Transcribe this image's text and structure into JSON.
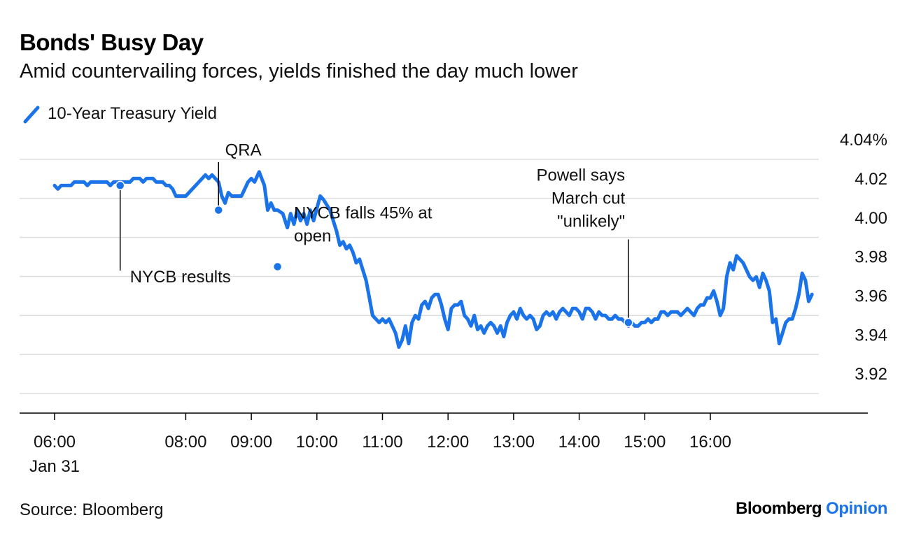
{
  "header": {
    "title": "Bonds' Busy Day",
    "subtitle": "Amid countervailing forces, yields finished the day much lower"
  },
  "footer": {
    "source": "Source: Bloomberg",
    "logo_brand": "Bloomberg",
    "logo_suffix": "Opinion"
  },
  "colors": {
    "line": "#1a73e8",
    "grid": "#dddddd",
    "axis": "#000000"
  },
  "chart_data": {
    "type": "line",
    "title": "Bonds' Busy Day",
    "subtitle": "Amid countervailing forces, yields finished the day much lower",
    "xlabel": "",
    "ylabel": "",
    "x_unit": "hours (time of day, Jan 31)",
    "xlim": [
      5.5,
      17.65
    ],
    "ylim": [
      3.9,
      4.04
    ],
    "y_ticks": [
      {
        "value": 4.04,
        "label": "4.04%"
      },
      {
        "value": 4.02,
        "label": "4.02"
      },
      {
        "value": 4.0,
        "label": "4.00"
      },
      {
        "value": 3.98,
        "label": "3.98"
      },
      {
        "value": 3.96,
        "label": "3.96"
      },
      {
        "value": 3.94,
        "label": "3.94"
      },
      {
        "value": 3.92,
        "label": "3.92"
      }
    ],
    "x_ticks": [
      {
        "value": 6,
        "label": "06:00",
        "sublabel": "Jan 31"
      },
      {
        "value": 8,
        "label": "08:00"
      },
      {
        "value": 9,
        "label": "09:00"
      },
      {
        "value": 10,
        "label": "10:00"
      },
      {
        "value": 11,
        "label": "11:00"
      },
      {
        "value": 12,
        "label": "12:00"
      },
      {
        "value": 13,
        "label": "13:00"
      },
      {
        "value": 14,
        "label": "14:00"
      },
      {
        "value": 15,
        "label": "15:00"
      },
      {
        "value": 16,
        "label": "16:00"
      }
    ],
    "grid": true,
    "legend": "top-left",
    "series": [
      {
        "name": "10-Year Treasury Yield",
        "points": [
          [
            6.0,
            4.0166
          ],
          [
            6.05,
            4.0148
          ],
          [
            6.1,
            4.0166
          ],
          [
            6.25,
            4.0166
          ],
          [
            6.3,
            4.0184
          ],
          [
            6.45,
            4.0184
          ],
          [
            6.5,
            4.0166
          ],
          [
            6.55,
            4.0184
          ],
          [
            6.8,
            4.0184
          ],
          [
            6.85,
            4.0166
          ],
          [
            6.9,
            4.0184
          ],
          [
            7.15,
            4.0184
          ],
          [
            7.2,
            4.0202
          ],
          [
            7.3,
            4.0202
          ],
          [
            7.35,
            4.0184
          ],
          [
            7.4,
            4.0202
          ],
          [
            7.5,
            4.0202
          ],
          [
            7.55,
            4.0184
          ],
          [
            7.65,
            4.0184
          ],
          [
            7.7,
            4.0166
          ],
          [
            7.75,
            4.0166
          ],
          [
            7.8,
            4.0148
          ],
          [
            7.85,
            4.0112
          ],
          [
            8.0,
            4.0112
          ],
          [
            8.05,
            4.013
          ],
          [
            8.1,
            4.0148
          ],
          [
            8.15,
            4.0166
          ],
          [
            8.2,
            4.0184
          ],
          [
            8.25,
            4.0202
          ],
          [
            8.3,
            4.022
          ],
          [
            8.35,
            4.0202
          ],
          [
            8.4,
            4.022
          ],
          [
            8.5,
            4.0184
          ],
          [
            8.55,
            4.0112
          ],
          [
            8.6,
            4.0076
          ],
          [
            8.65,
            4.013
          ],
          [
            8.7,
            4.0112
          ],
          [
            8.85,
            4.0112
          ],
          [
            8.9,
            4.0148
          ],
          [
            8.95,
            4.0184
          ],
          [
            9.0,
            4.0202
          ],
          [
            9.05,
            4.0184
          ],
          [
            9.12,
            4.0236
          ],
          [
            9.2,
            4.0166
          ],
          [
            9.25,
            4.004
          ],
          [
            9.3,
            4.0076
          ],
          [
            9.35,
            4.004
          ],
          [
            9.4,
            4.004
          ],
          [
            9.48,
            4.0022
          ],
          [
            9.55,
            3.995
          ],
          [
            9.6,
            4.0022
          ],
          [
            9.65,
            3.9968
          ],
          [
            9.7,
            4.004
          ],
          [
            9.75,
            3.9986
          ],
          [
            9.8,
            4.0022
          ],
          [
            9.85,
            3.9968
          ],
          [
            9.9,
            4.004
          ],
          [
            9.95,
            3.9986
          ],
          [
            10.05,
            4.0112
          ],
          [
            10.1,
            4.0094
          ],
          [
            10.2,
            4.004
          ],
          [
            10.25,
            3.9986
          ],
          [
            10.3,
            3.9932
          ],
          [
            10.35,
            3.986
          ],
          [
            10.4,
            3.9878
          ],
          [
            10.45,
            3.9842
          ],
          [
            10.5,
            3.986
          ],
          [
            10.55,
            3.9824
          ],
          [
            10.6,
            3.977
          ],
          [
            10.65,
            3.9788
          ],
          [
            10.7,
            3.9734
          ],
          [
            10.75,
            3.968
          ],
          [
            10.8,
            3.959
          ],
          [
            10.85,
            3.95
          ],
          [
            10.9,
            3.9482
          ],
          [
            10.95,
            3.9464
          ],
          [
            11.0,
            3.9482
          ],
          [
            11.05,
            3.9464
          ],
          [
            11.1,
            3.9482
          ],
          [
            11.2,
            3.941
          ],
          [
            11.25,
            3.9338
          ],
          [
            11.3,
            3.9374
          ],
          [
            11.35,
            3.9446
          ],
          [
            11.4,
            3.9356
          ],
          [
            11.45,
            3.9464
          ],
          [
            11.5,
            3.95
          ],
          [
            11.55,
            3.9482
          ],
          [
            11.6,
            3.9554
          ],
          [
            11.65,
            3.9572
          ],
          [
            11.7,
            3.9536
          ],
          [
            11.75,
            3.959
          ],
          [
            11.8,
            3.9608
          ],
          [
            11.85,
            3.9608
          ],
          [
            11.9,
            3.9554
          ],
          [
            11.95,
            3.9482
          ],
          [
            12.0,
            3.9428
          ],
          [
            12.05,
            3.9536
          ],
          [
            12.1,
            3.9554
          ],
          [
            12.15,
            3.9554
          ],
          [
            12.2,
            3.9572
          ],
          [
            12.25,
            3.95
          ],
          [
            12.3,
            3.9482
          ],
          [
            12.35,
            3.9446
          ],
          [
            12.4,
            3.95
          ],
          [
            12.45,
            3.9428
          ],
          [
            12.5,
            3.9446
          ],
          [
            12.55,
            3.941
          ],
          [
            12.6,
            3.9446
          ],
          [
            12.65,
            3.9464
          ],
          [
            12.7,
            3.9446
          ],
          [
            12.75,
            3.941
          ],
          [
            12.8,
            3.9446
          ],
          [
            12.85,
            3.9392
          ],
          [
            12.9,
            3.9464
          ],
          [
            12.95,
            3.95
          ],
          [
            13.0,
            3.9518
          ],
          [
            13.05,
            3.9482
          ],
          [
            13.1,
            3.9536
          ],
          [
            13.15,
            3.95
          ],
          [
            13.2,
            3.9482
          ],
          [
            13.25,
            3.95
          ],
          [
            13.3,
            3.9482
          ],
          [
            13.35,
            3.9428
          ],
          [
            13.4,
            3.9446
          ],
          [
            13.45,
            3.95
          ],
          [
            13.5,
            3.9518
          ],
          [
            13.55,
            3.95
          ],
          [
            13.6,
            3.9518
          ],
          [
            13.65,
            3.9482
          ],
          [
            13.7,
            3.9518
          ],
          [
            13.75,
            3.9536
          ],
          [
            13.8,
            3.9518
          ],
          [
            13.85,
            3.95
          ],
          [
            13.9,
            3.9536
          ],
          [
            13.95,
            3.9536
          ],
          [
            14.0,
            3.9518
          ],
          [
            14.05,
            3.9482
          ],
          [
            14.1,
            3.9536
          ],
          [
            14.15,
            3.9536
          ],
          [
            14.2,
            3.9518
          ],
          [
            14.25,
            3.9482
          ],
          [
            14.3,
            3.9518
          ],
          [
            14.35,
            3.95
          ],
          [
            14.4,
            3.95
          ],
          [
            14.45,
            3.9482
          ],
          [
            14.5,
            3.9482
          ],
          [
            14.55,
            3.95
          ],
          [
            14.6,
            3.9482
          ],
          [
            14.65,
            3.9482
          ],
          [
            14.7,
            3.9464
          ],
          [
            14.75,
            3.9446
          ],
          [
            14.8,
            3.9464
          ],
          [
            14.85,
            3.9446
          ],
          [
            14.9,
            3.9446
          ],
          [
            14.95,
            3.9464
          ],
          [
            15.0,
            3.9464
          ],
          [
            15.05,
            3.9482
          ],
          [
            15.1,
            3.9464
          ],
          [
            15.15,
            3.9482
          ],
          [
            15.2,
            3.9482
          ],
          [
            15.25,
            3.9518
          ],
          [
            15.3,
            3.9518
          ],
          [
            15.35,
            3.95
          ],
          [
            15.4,
            3.9518
          ],
          [
            15.5,
            3.9518
          ],
          [
            15.55,
            3.95
          ],
          [
            15.6,
            3.9518
          ],
          [
            15.65,
            3.9536
          ],
          [
            15.7,
            3.9518
          ],
          [
            15.75,
            3.95
          ],
          [
            15.8,
            3.9536
          ],
          [
            15.85,
            3.9554
          ],
          [
            15.9,
            3.9554
          ],
          [
            15.95,
            3.959
          ],
          [
            16.0,
            3.959
          ],
          [
            16.05,
            3.9626
          ],
          [
            16.1,
            3.9572
          ],
          [
            16.15,
            3.95
          ],
          [
            16.2,
            3.9536
          ],
          [
            16.25,
            3.97
          ],
          [
            16.3,
            3.977
          ],
          [
            16.35,
            3.9734
          ],
          [
            16.4,
            3.9806
          ],
          [
            16.45,
            3.9788
          ],
          [
            16.5,
            3.977
          ],
          [
            16.55,
            3.9734
          ],
          [
            16.6,
            3.9698
          ],
          [
            16.65,
            3.968
          ],
          [
            16.7,
            3.9698
          ],
          [
            16.75,
            3.9644
          ],
          [
            16.8,
            3.9716
          ],
          [
            16.85,
            3.968
          ],
          [
            16.9,
            3.9626
          ],
          [
            16.95,
            3.9464
          ],
          [
            17.0,
            3.9482
          ],
          [
            17.05,
            3.9356
          ],
          [
            17.1,
            3.941
          ],
          [
            17.15,
            3.9464
          ],
          [
            17.2,
            3.9482
          ],
          [
            17.25,
            3.9482
          ],
          [
            17.3,
            3.9536
          ],
          [
            17.35,
            3.9608
          ],
          [
            17.4,
            3.9716
          ],
          [
            17.45,
            3.968
          ],
          [
            17.5,
            3.9572
          ],
          [
            17.55,
            3.9608
          ]
        ]
      }
    ],
    "annotations": [
      {
        "label": [
          "NYCB results"
        ],
        "x": 7.0,
        "y": 4.0166,
        "leader_to_y": 3.973,
        "text_x": 7.15,
        "text_y": 3.967,
        "anchor": "start"
      },
      {
        "label": [
          "QRA"
        ],
        "x": 8.5,
        "y": 4.004,
        "leader_to_y": 4.0286,
        "text_x": 8.6,
        "text_y": 4.032,
        "anchor": "start"
      },
      {
        "label": [
          "NYCB falls 45% at",
          "open"
        ],
        "x": 9.4,
        "y": 3.975,
        "leader_to_y": null,
        "text_x": 9.65,
        "text_y": 3.9998,
        "anchor": "start"
      },
      {
        "label": [
          "Powell says",
          "March cut",
          "\"unlikely\""
        ],
        "x": 14.75,
        "y": 3.9464,
        "leader_to_y": 3.989,
        "text_x": 14.7,
        "text_y": 4.019,
        "anchor": "end"
      }
    ]
  }
}
